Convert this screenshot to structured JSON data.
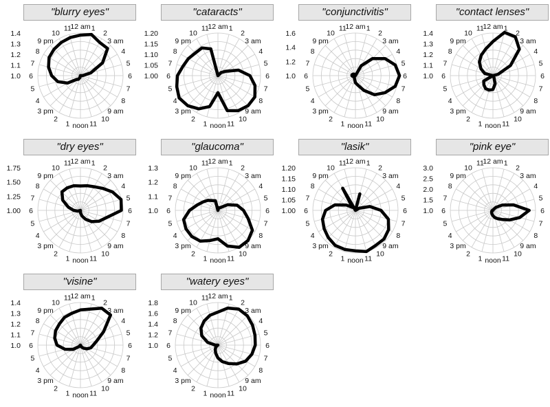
{
  "chart_data": [
    {
      "type": "radar",
      "title": "\"blurry eyes\"",
      "r_ticks": [
        "1.0",
        "1.1",
        "1.2",
        "1.3",
        "1.4"
      ],
      "angle_labels": [
        "12 am",
        "1",
        "2",
        "3 am",
        "4",
        "5",
        "6",
        "7",
        "8",
        "9 am",
        "10",
        "11",
        "noon",
        "1",
        "2",
        "3 pm",
        "4",
        "5",
        "6",
        "7",
        "8",
        "9 pm",
        "10",
        "11"
      ],
      "values": [
        1.38,
        1.4,
        1.36,
        1.36,
        1.24,
        1.1,
        1.02,
        0.99,
        1.0,
        0.98,
        0.98,
        0.98,
        1.0,
        1.02,
        1.04,
        1.05,
        1.14,
        1.22,
        1.27,
        1.31,
        1.34,
        1.35,
        1.36,
        1.37
      ]
    },
    {
      "type": "radar",
      "title": "\"cataracts\"",
      "r_ticks": [
        "1.00",
        "1.05",
        "1.10",
        "1.15",
        "1.20"
      ],
      "angle_labels": [
        "12 am",
        "1",
        "2",
        "3 am",
        "4",
        "5",
        "6",
        "7",
        "8",
        "9 am",
        "10",
        "11",
        "noon",
        "1",
        "2",
        "3 pm",
        "4",
        "5",
        "6",
        "7",
        "8",
        "9 pm",
        "10",
        "11"
      ],
      "values": [
        0.99,
        1.0,
        1.0,
        1.02,
        1.04,
        1.1,
        1.15,
        1.18,
        1.2,
        1.2,
        1.19,
        1.17,
        1.08,
        1.15,
        1.18,
        1.2,
        1.21,
        1.2,
        1.19,
        1.17,
        1.16,
        1.15,
        1.15,
        1.13
      ]
    },
    {
      "type": "radar",
      "title": "\"conjunctivitis\"",
      "r_ticks": [
        "1.0",
        "1.2",
        "1.4",
        "1.6"
      ],
      "angle_labels": [
        "12 am",
        "1",
        "2",
        "3 am",
        "4",
        "5",
        "6",
        "7",
        "8",
        "9 am",
        "10",
        "11",
        "noon",
        "1",
        "2",
        "3 pm",
        "4",
        "5",
        "6",
        "7",
        "8",
        "9 pm",
        "10",
        "11"
      ],
      "values": [
        1.0,
        1.0,
        1.16,
        1.34,
        1.48,
        1.58,
        1.62,
        1.58,
        1.48,
        1.38,
        1.24,
        1.14,
        1.1,
        1.05,
        1.03,
        1.02,
        1.03,
        1.04,
        1.05,
        1.05,
        1.04,
        1.03,
        1.02,
        1.01
      ]
    },
    {
      "type": "radar",
      "title": "\"contact lenses\"",
      "r_ticks": [
        "1.0",
        "1.1",
        "1.2",
        "1.3",
        "1.4"
      ],
      "angle_labels": [
        "12 am",
        "1",
        "2",
        "3 am",
        "4",
        "5",
        "6",
        "7",
        "8",
        "9 am",
        "10",
        "11",
        "noon",
        "1",
        "2",
        "3 pm",
        "4",
        "5",
        "6",
        "7",
        "8",
        "9 pm",
        "10",
        "11"
      ],
      "values": [
        1.32,
        1.42,
        1.42,
        1.35,
        1.19,
        1.05,
        1.0,
        1.0,
        1.0,
        1.0,
        1.02,
        1.08,
        1.13,
        1.14,
        1.14,
        1.12,
        1.1,
        1.0,
        1.0,
        1.08,
        1.13,
        1.18,
        1.22,
        1.26
      ]
    },
    {
      "type": "radar",
      "title": "\"dry eyes\"",
      "r_ticks": [
        "1.00",
        "1.25",
        "1.50",
        "1.75"
      ],
      "angle_labels": [
        "12 am",
        "1",
        "2",
        "3 am",
        "4",
        "5",
        "6",
        "7",
        "8",
        "9 am",
        "10",
        "11",
        "noon",
        "1",
        "2",
        "3 pm",
        "4",
        "5",
        "6",
        "7",
        "8",
        "9 pm",
        "10",
        "11"
      ],
      "values": [
        1.43,
        1.45,
        1.48,
        1.55,
        1.65,
        1.74,
        1.72,
        1.48,
        1.38,
        1.28,
        1.18,
        1.1,
        1.04,
        1.0,
        1.0,
        1.0,
        1.0,
        1.05,
        1.12,
        1.22,
        1.36,
        1.46,
        1.46,
        1.45
      ]
    },
    {
      "type": "radar",
      "title": "\"glaucoma\"",
      "r_ticks": [
        "1.0",
        "1.1",
        "1.2",
        "1.3"
      ],
      "angle_labels": [
        "12 am",
        "1",
        "2",
        "3 am",
        "4",
        "5",
        "6",
        "7",
        "8",
        "9 am",
        "10",
        "11",
        "noon",
        "1",
        "2",
        "3 pm",
        "4",
        "5",
        "6",
        "7",
        "8",
        "9 pm",
        "10",
        "11"
      ],
      "values": [
        1.0,
        1.02,
        1.02,
        1.03,
        1.08,
        1.14,
        1.18,
        1.22,
        1.28,
        1.3,
        1.3,
        1.26,
        1.2,
        1.22,
        1.25,
        1.26,
        1.26,
        1.25,
        1.2,
        1.15,
        1.12,
        1.1,
        1.08,
        1.07
      ]
    },
    {
      "type": "radar",
      "title": "\"lasik\"",
      "r_ticks": [
        "1.00",
        "1.05",
        "1.10",
        "1.15",
        "1.20"
      ],
      "angle_labels": [
        "12 am",
        "1",
        "2",
        "3 am",
        "4",
        "5",
        "6",
        "7",
        "8",
        "9 am",
        "10",
        "11",
        "noon",
        "1",
        "2",
        "3 pm",
        "4",
        "5",
        "6",
        "7",
        "8",
        "9 pm",
        "10",
        "11"
      ],
      "values": [
        0.99,
        1.08,
        1.0,
        1.0,
        1.02,
        1.07,
        1.12,
        1.16,
        1.18,
        1.19,
        1.19,
        1.2,
        1.19,
        1.19,
        1.19,
        1.18,
        1.17,
        1.16,
        1.14,
        1.1,
        1.05,
        1.02,
        1.12,
        1.0
      ]
    },
    {
      "type": "radar",
      "title": "\"pink eye\"",
      "r_ticks": [
        "1.0",
        "1.5",
        "2.0",
        "2.5",
        "3.0"
      ],
      "angle_labels": [
        "12 am",
        "1",
        "2",
        "3 am",
        "4",
        "5",
        "6",
        "7",
        "8",
        "9 am",
        "10",
        "11",
        "noon",
        "1",
        "2",
        "3 pm",
        "4",
        "5",
        "6",
        "7",
        "8",
        "9 pm",
        "10",
        "11"
      ],
      "values": [
        1.0,
        1.0,
        1.05,
        1.2,
        1.5,
        2.0,
        2.7,
        2.3,
        1.9,
        1.6,
        1.45,
        1.35,
        1.25,
        1.18,
        1.12,
        1.08,
        1.06,
        1.04,
        1.02,
        1.02,
        1.01,
        1.0,
        1.0,
        1.0
      ]
    },
    {
      "type": "radar",
      "title": "\"visine\"",
      "r_ticks": [
        "1.0",
        "1.1",
        "1.2",
        "1.3",
        "1.4"
      ],
      "angle_labels": [
        "12 am",
        "1",
        "2",
        "3 am",
        "4",
        "5",
        "6",
        "7",
        "8",
        "9 am",
        "10",
        "11",
        "noon",
        "1",
        "2",
        "3 pm",
        "4",
        "5",
        "6",
        "7",
        "8",
        "9 pm",
        "10",
        "11"
      ],
      "values": [
        1.33,
        1.35,
        1.4,
        1.4,
        1.25,
        1.16,
        1.12,
        1.1,
        1.07,
        1.04,
        1.02,
        1.0,
        1.0,
        0.99,
        0.99,
        1.02,
        1.08,
        1.15,
        1.22,
        1.25,
        1.27,
        1.28,
        1.3,
        1.31
      ]
    },
    {
      "type": "radar",
      "title": "\"watery eyes\"",
      "r_ticks": [
        "1.0",
        "1.2",
        "1.4",
        "1.6",
        "1.8"
      ],
      "angle_labels": [
        "12 am",
        "1",
        "2",
        "3 am",
        "4",
        "5",
        "6",
        "7",
        "8",
        "9 am",
        "10",
        "11",
        "noon",
        "1",
        "2",
        "3 pm",
        "4",
        "5",
        "6",
        "7",
        "8",
        "9 pm",
        "10",
        "11"
      ],
      "values": [
        1.62,
        1.72,
        1.78,
        1.78,
        1.75,
        1.72,
        1.7,
        1.66,
        1.6,
        1.5,
        1.4,
        1.32,
        1.24,
        1.16,
        1.1,
        1.06,
        1.02,
        1.0,
        1.05,
        1.2,
        1.35,
        1.45,
        1.52,
        1.58
      ]
    }
  ]
}
